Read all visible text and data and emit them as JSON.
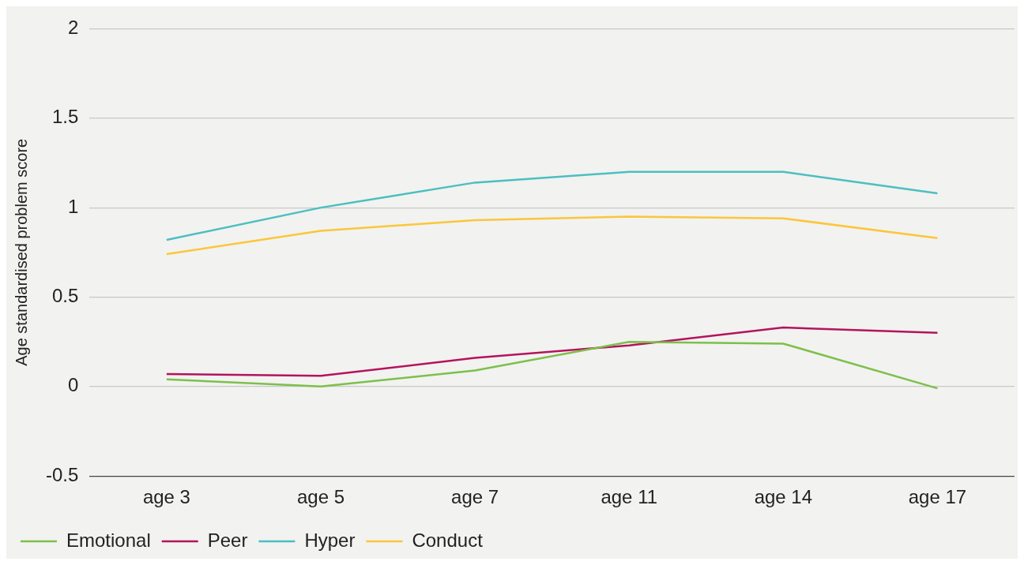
{
  "chart_data": {
    "type": "line",
    "ylabel": "Age standardised problem score",
    "categories": [
      "age 3",
      "age 5",
      "age 7",
      "age 11",
      "age 14",
      "age 17"
    ],
    "series": [
      {
        "name": "Emotional",
        "color": "#7cc04b",
        "values": [
          0.04,
          0.0,
          0.09,
          0.25,
          0.24,
          -0.01
        ]
      },
      {
        "name": "Peer",
        "color": "#b5135d",
        "values": [
          0.07,
          0.06,
          0.16,
          0.23,
          0.33,
          0.3
        ]
      },
      {
        "name": "Hyper",
        "color": "#4bbfc1",
        "values": [
          0.82,
          1.0,
          1.14,
          1.2,
          1.2,
          1.08
        ]
      },
      {
        "name": "Conduct",
        "color": "#fbc63a",
        "values": [
          0.74,
          0.87,
          0.93,
          0.95,
          0.94,
          0.83
        ]
      }
    ],
    "ylim": [
      -0.5,
      2
    ],
    "yticks": [
      -0.5,
      0,
      0.5,
      1,
      1.5,
      2
    ],
    "grid": "y",
    "legend": "bottom left",
    "marker": "none",
    "line_style": "solid"
  }
}
